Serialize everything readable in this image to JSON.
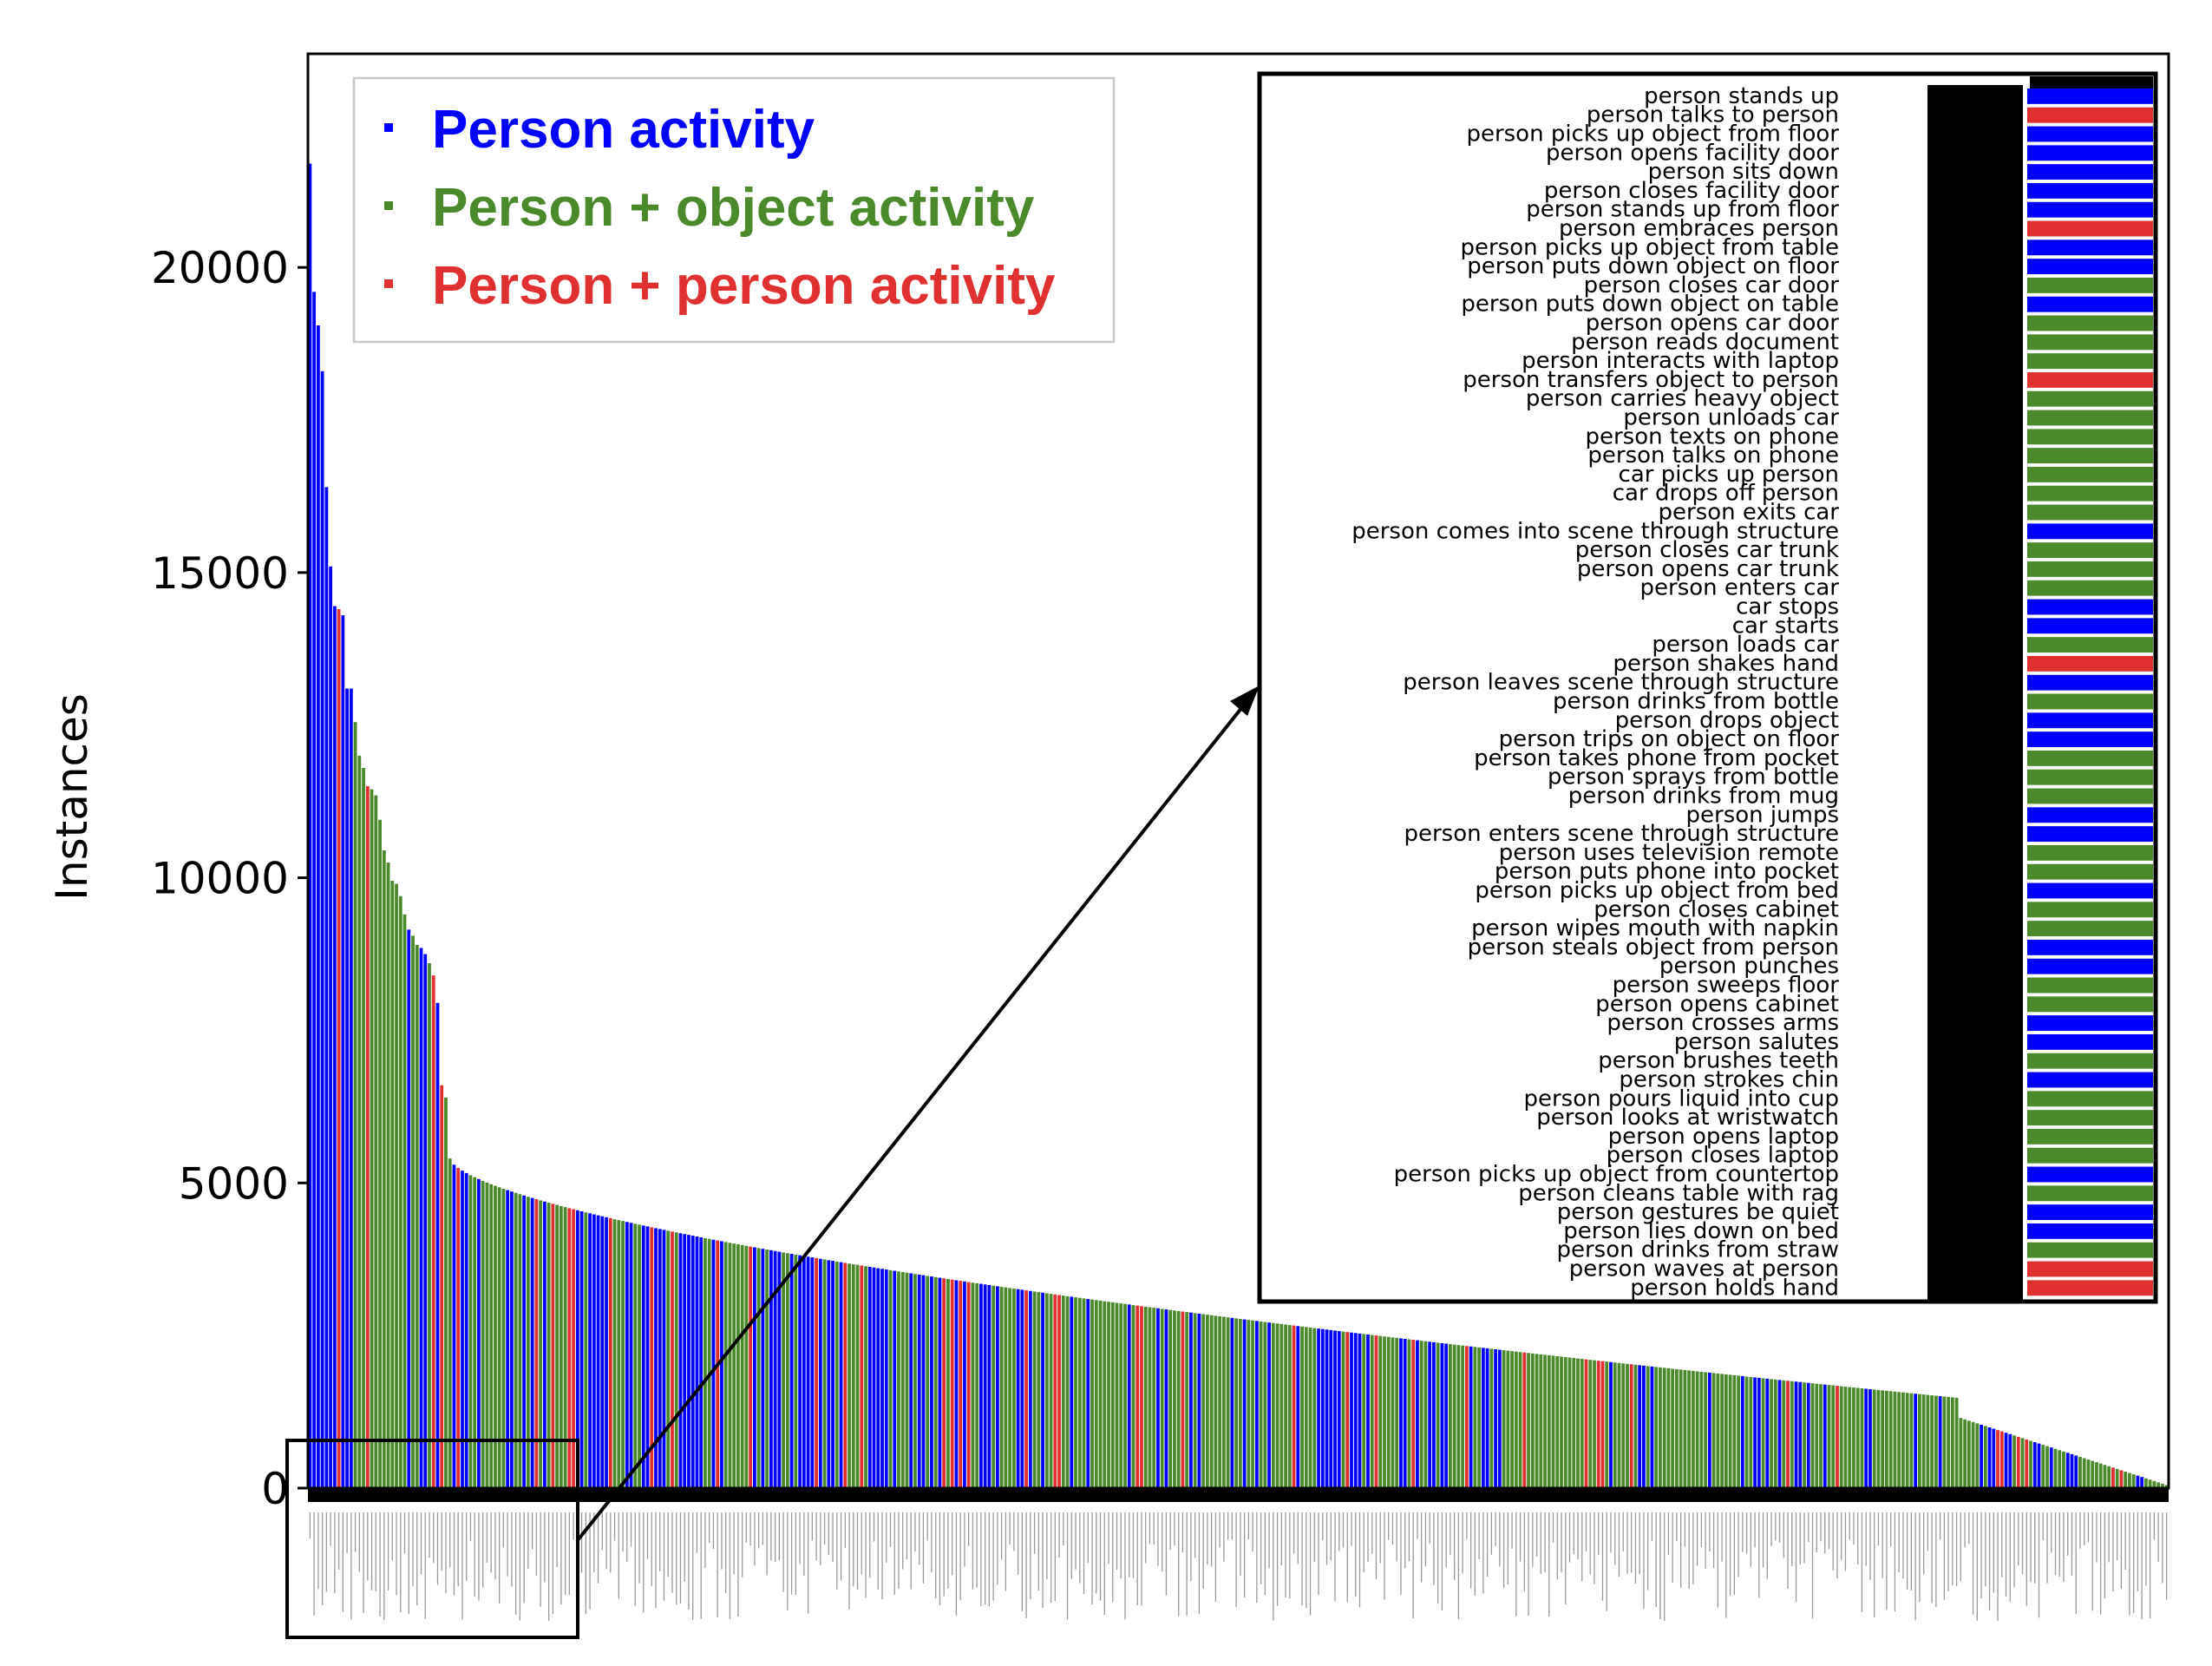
{
  "chart_data": {
    "type": "bar",
    "ylabel": "Instances",
    "ylim": [
      0,
      23500
    ],
    "yticks": [
      0,
      5000,
      10000,
      15000,
      20000
    ],
    "grid": false,
    "legend_position": "top-left",
    "series": [
      {
        "name": "Person activity",
        "color": "#0000ff"
      },
      {
        "name": "Person + object activity",
        "color": "#4b8a2a"
      },
      {
        "name": "Person + person activity",
        "color": "#e03030"
      }
    ],
    "head_values": [
      21700,
      19600,
      19050,
      18300,
      16400,
      15100,
      14450,
      14400,
      14300,
      13100,
      13100,
      12550,
      12000,
      11800,
      11500,
      11450,
      11350,
      10950,
      10450,
      10250,
      9950,
      9900,
      9700,
      9400,
      9150,
      9050,
      8900,
      8850,
      8750,
      8600,
      8400,
      7950,
      6600,
      6400,
      5400
    ],
    "head_categories": [
      0,
      0,
      0,
      0,
      0,
      0,
      0,
      2,
      0,
      0,
      0,
      1,
      1,
      1,
      2,
      1,
      1,
      1,
      1,
      1,
      1,
      1,
      1,
      1,
      0,
      1,
      1,
      0,
      0,
      1,
      2,
      0,
      2,
      1,
      1
    ],
    "bar_count": 452,
    "tail_end_value": 50
  },
  "inset": {
    "labels": [
      "person stands up",
      "person talks to person",
      "person picks up object from floor",
      "person opens facility door",
      "person sits down",
      "person closes facility door",
      "person stands up from floor",
      "person embraces person",
      "person picks up object from table",
      "person puts down object on floor",
      "person closes car door",
      "person puts down object on table",
      "person opens car door",
      "person reads document",
      "person interacts with laptop",
      "person transfers object to person",
      "person carries heavy object",
      "person unloads car",
      "person texts on phone",
      "person talks on phone",
      "car picks up person",
      "car drops off person",
      "person exits car",
      "person comes into scene through structure",
      "person closes car trunk",
      "person opens car trunk",
      "person enters car",
      "car stops",
      "car starts",
      "person loads car",
      "person shakes hand",
      "person leaves scene through structure",
      "person drinks from bottle",
      "person drops object",
      "person trips on object on floor",
      "person takes phone from pocket",
      "person sprays from bottle",
      "person drinks from mug",
      "person jumps",
      "person enters scene through structure",
      "person uses television remote",
      "person puts phone into pocket",
      "person picks up object from bed",
      "person closes cabinet",
      "person wipes mouth with napkin",
      "person steals object from person",
      "person punches",
      "person sweeps floor",
      "person opens cabinet",
      "person crosses arms",
      "person salutes",
      "person brushes teeth",
      "person strokes chin",
      "person pours liquid into cup",
      "person looks at wristwatch",
      "person opens laptop",
      "person closes laptop",
      "person picks up object from countertop",
      "person cleans table with rag",
      "person gestures be quiet",
      "person lies down on bed",
      "person drinks from straw",
      "person waves at person",
      "person holds hand"
    ],
    "categories": [
      0,
      2,
      0,
      0,
      0,
      0,
      0,
      2,
      0,
      0,
      1,
      0,
      1,
      1,
      1,
      2,
      1,
      1,
      1,
      1,
      1,
      1,
      1,
      0,
      1,
      1,
      1,
      0,
      0,
      1,
      2,
      0,
      1,
      0,
      0,
      1,
      1,
      1,
      0,
      0,
      1,
      1,
      0,
      1,
      1,
      0,
      0,
      1,
      1,
      0,
      0,
      1,
      0,
      1,
      1,
      1,
      1,
      0,
      1,
      0,
      0,
      1,
      2,
      2
    ]
  }
}
